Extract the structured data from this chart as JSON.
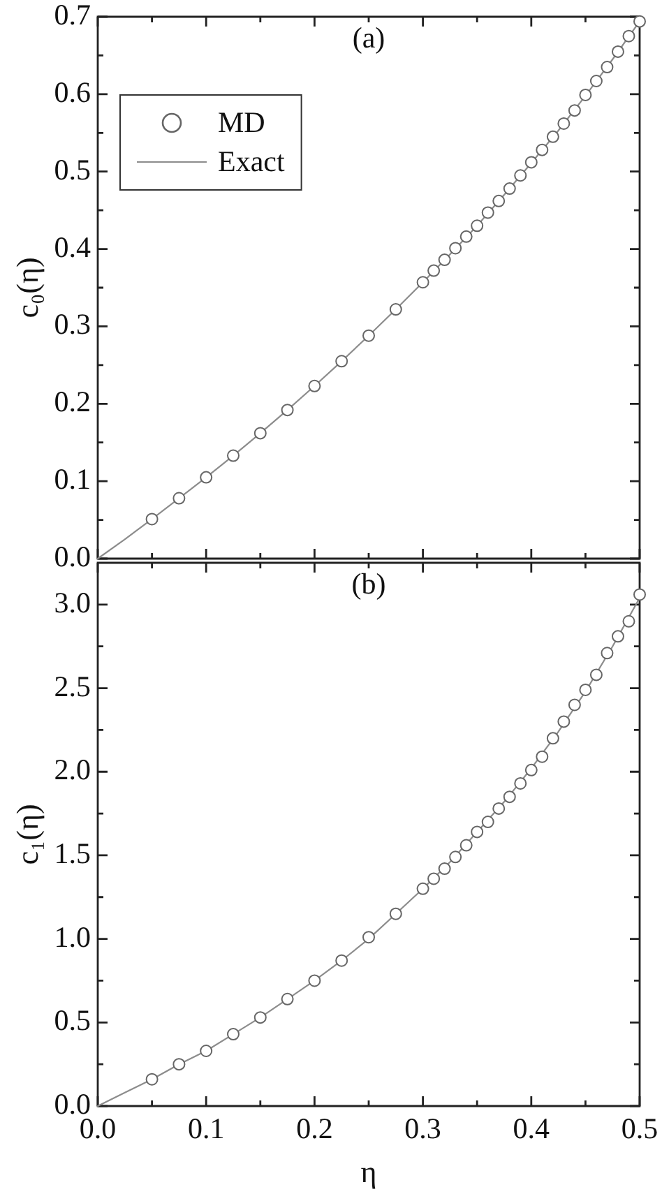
{
  "chart_data": [
    {
      "type": "scatter",
      "annotations": [
        "(a)"
      ],
      "ylabel": "c₀(η)",
      "xlim": [
        0,
        0.5
      ],
      "xticks": [
        0,
        {
          "value": 0.05,
          "label": null
        },
        0.1,
        {
          "value": 0.15,
          "label": null
        },
        0.2,
        {
          "value": 0.25,
          "label": null
        },
        0.3,
        {
          "value": 0.35,
          "label": null
        },
        0.4,
        {
          "value": 0.45,
          "label": null
        },
        0.5
      ],
      "ylim": [
        0,
        0.7
      ],
      "yticks": [
        {
          "value": 0,
          "label": "0.0"
        },
        {
          "value": 0.05,
          "label": null
        },
        0.1,
        {
          "value": 0.15,
          "label": null
        },
        0.2,
        {
          "value": 0.25,
          "label": null
        },
        0.3,
        {
          "value": 0.35,
          "label": null
        },
        0.4,
        {
          "value": 0.45,
          "label": null
        },
        0.5,
        {
          "value": 0.55,
          "label": null
        },
        0.6,
        {
          "value": 0.65,
          "label": null
        },
        0.7
      ],
      "tick_labels": "y",
      "legend": "top left",
      "grid": false,
      "series": [
        {
          "name": "MD",
          "type": "scatter",
          "marker": "circle",
          "color": "#666666",
          "x": [
            0.05,
            0.075,
            0.1,
            0.125,
            0.15,
            0.175,
            0.2,
            0.225,
            0.25,
            0.275,
            0.3,
            0.31,
            0.32,
            0.33,
            0.34,
            0.35,
            0.36,
            0.37,
            0.38,
            0.39,
            0.4,
            0.41,
            0.42,
            0.43,
            0.44,
            0.45,
            0.46,
            0.47,
            0.48,
            0.49,
            0.5
          ],
          "values": [
            0.051,
            0.078,
            0.105,
            0.133,
            0.162,
            0.192,
            0.223,
            0.255,
            0.288,
            0.322,
            0.357,
            0.372,
            0.386,
            0.401,
            0.416,
            0.43,
            0.447,
            0.462,
            0.478,
            0.495,
            0.512,
            0.528,
            0.545,
            0.562,
            0.579,
            0.599,
            0.617,
            0.635,
            0.655,
            0.675,
            0.694
          ]
        },
        {
          "name": "Exact",
          "type": "line",
          "marker": "none",
          "line_style": "solid",
          "color": "#8c8c8c",
          "x": [
            0,
            0.025,
            0.05,
            0.075,
            0.1,
            0.125,
            0.15,
            0.175,
            0.2,
            0.225,
            0.25,
            0.275,
            0.3,
            0.325,
            0.35,
            0.375,
            0.4,
            0.425,
            0.45,
            0.475,
            0.5
          ],
          "values": [
            0,
            0.025,
            0.051,
            0.078,
            0.105,
            0.133,
            0.162,
            0.192,
            0.223,
            0.255,
            0.288,
            0.322,
            0.357,
            0.393,
            0.43,
            0.47,
            0.511,
            0.553,
            0.598,
            0.645,
            0.694
          ]
        }
      ]
    },
    {
      "type": "scatter",
      "annotations": [
        "(b)"
      ],
      "xlabel": "η",
      "ylabel": "c₁(η)",
      "xlim": [
        0,
        0.5
      ],
      "xticks": [
        {
          "value": 0,
          "label": "0.0"
        },
        {
          "value": 0.05,
          "label": null
        },
        0.1,
        {
          "value": 0.15,
          "label": null
        },
        0.2,
        {
          "value": 0.25,
          "label": null
        },
        0.3,
        {
          "value": 0.35,
          "label": null
        },
        0.4,
        {
          "value": 0.45,
          "label": null
        },
        0.5
      ],
      "ylim": [
        0,
        3.25
      ],
      "yticks": [
        {
          "value": 0,
          "label": "0.0"
        },
        {
          "value": 0.25,
          "label": null
        },
        0.5,
        {
          "value": 0.75,
          "label": null
        },
        {
          "value": 1,
          "label": "1.0"
        },
        {
          "value": 1.25,
          "label": null
        },
        1.5,
        {
          "value": 1.75,
          "label": null
        },
        {
          "value": 2,
          "label": "2.0"
        },
        {
          "value": 2.25,
          "label": null
        },
        2.5,
        {
          "value": 2.75,
          "label": null
        },
        {
          "value": 3,
          "label": "3.0"
        }
      ],
      "grid": false,
      "series": [
        {
          "type": "scatter",
          "marker": "circle",
          "color": "#666666",
          "x": [
            0.05,
            0.075,
            0.1,
            0.125,
            0.15,
            0.175,
            0.2,
            0.225,
            0.25,
            0.275,
            0.3,
            0.31,
            0.32,
            0.33,
            0.34,
            0.35,
            0.36,
            0.37,
            0.38,
            0.39,
            0.4,
            0.41,
            0.42,
            0.43,
            0.44,
            0.45,
            0.46,
            0.47,
            0.48,
            0.49,
            0.5
          ],
          "values": [
            0.16,
            0.25,
            0.33,
            0.43,
            0.53,
            0.64,
            0.75,
            0.87,
            1.01,
            1.15,
            1.3,
            1.36,
            1.42,
            1.49,
            1.56,
            1.64,
            1.7,
            1.78,
            1.85,
            1.93,
            2.01,
            2.09,
            2.2,
            2.3,
            2.4,
            2.49,
            2.58,
            2.71,
            2.81,
            2.9,
            3.06
          ]
        },
        {
          "type": "line",
          "marker": "none",
          "line_style": "solid",
          "color": "#8c8c8c",
          "x": [
            0,
            0.025,
            0.05,
            0.075,
            0.1,
            0.125,
            0.15,
            0.175,
            0.2,
            0.225,
            0.25,
            0.275,
            0.3,
            0.325,
            0.35,
            0.375,
            0.4,
            0.425,
            0.45,
            0.475,
            0.5
          ],
          "values": [
            0,
            0.08,
            0.16,
            0.25,
            0.33,
            0.43,
            0.53,
            0.64,
            0.75,
            0.87,
            1.0,
            1.15,
            1.3,
            1.46,
            1.64,
            1.82,
            2.02,
            2.24,
            2.48,
            2.75,
            3.04
          ]
        }
      ]
    }
  ]
}
